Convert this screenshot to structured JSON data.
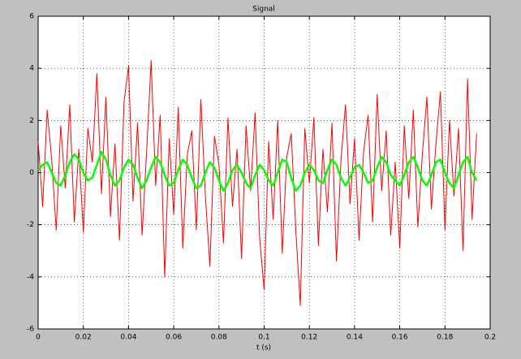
{
  "chart_data": {
    "type": "line",
    "title": "Signal",
    "x_label": "t (s)",
    "x": [
      0,
      0.002,
      0.004,
      0.006,
      0.008,
      0.01,
      0.012,
      0.014,
      0.016,
      0.018,
      0.02,
      0.022,
      0.024,
      0.026,
      0.028,
      0.03,
      0.032,
      0.034,
      0.036,
      0.038,
      0.04,
      0.042,
      0.044,
      0.046,
      0.048,
      0.05,
      0.052,
      0.054,
      0.056,
      0.058,
      0.06,
      0.062,
      0.064,
      0.066,
      0.068,
      0.07,
      0.072,
      0.074,
      0.076,
      0.078,
      0.08,
      0.082,
      0.084,
      0.086,
      0.088,
      0.09,
      0.092,
      0.094,
      0.096,
      0.098,
      0.1,
      0.102,
      0.104,
      0.106,
      0.108,
      0.11,
      0.112,
      0.114,
      0.116,
      0.118,
      0.12,
      0.122,
      0.124,
      0.126,
      0.128,
      0.13,
      0.132,
      0.134,
      0.136,
      0.138,
      0.14,
      0.142,
      0.144,
      0.146,
      0.148,
      0.15,
      0.152,
      0.154,
      0.156,
      0.158,
      0.16,
      0.162,
      0.164,
      0.166,
      0.168,
      0.17,
      0.172,
      0.174,
      0.176,
      0.178,
      0.18,
      0.182,
      0.184,
      0.186,
      0.188,
      0.19,
      0.192,
      0.194
    ],
    "series": [
      {
        "color": "#ff0000",
        "values": [
          1.2,
          -1.3,
          2.4,
          0.5,
          -2.2,
          1.8,
          -0.6,
          2.6,
          -1.9,
          0.9,
          -2.3,
          1.7,
          0.4,
          3.8,
          -0.8,
          2.9,
          -1.7,
          1.1,
          -2.6,
          2.7,
          4.1,
          -1.1,
          1.9,
          -2.4,
          0.8,
          4.3,
          -0.5,
          2.2,
          -4.0,
          1.3,
          -1.6,
          2.5,
          -2.9,
          0.7,
          1.6,
          -2.2,
          2.8,
          -0.9,
          -3.6,
          1.4,
          0.3,
          -2.7,
          2.1,
          -1.3,
          0.9,
          -3.3,
          1.8,
          -0.7,
          2.3,
          -2.5,
          -4.5,
          1.2,
          -1.8,
          2.0,
          -3.1,
          0.6,
          1.5,
          -2.2,
          -5.1,
          1.7,
          -0.4,
          2.1,
          -2.8,
          0.9,
          -1.5,
          1.9,
          -3.4,
          0.5,
          2.6,
          -1.2,
          1.3,
          -2.6,
          0.8,
          2.2,
          -1.9,
          3.0,
          -0.7,
          1.6,
          -2.4,
          0.4,
          -2.9,
          1.8,
          -1.0,
          2.4,
          -2.1,
          0.7,
          2.9,
          -1.4,
          1.1,
          3.1,
          -2.2,
          2.0,
          -0.9,
          1.7,
          -3.0,
          3.6,
          -1.8,
          1.5
        ]
      },
      {
        "color": "#00ff00",
        "values": [
          0.1,
          0.3,
          0.4,
          0.0,
          -0.4,
          -0.5,
          -0.1,
          0.4,
          0.7,
          0.5,
          0.0,
          -0.3,
          -0.2,
          0.3,
          0.8,
          0.5,
          -0.1,
          -0.5,
          -0.3,
          0.2,
          0.5,
          0.3,
          -0.2,
          -0.6,
          -0.3,
          0.2,
          0.6,
          0.4,
          -0.1,
          -0.5,
          -0.4,
          0.1,
          0.5,
          0.3,
          -0.2,
          -0.6,
          -0.5,
          0.0,
          0.4,
          0.2,
          -0.3,
          -0.7,
          -0.4,
          0.1,
          0.3,
          0.0,
          -0.4,
          -0.6,
          -0.1,
          0.3,
          0.1,
          -0.3,
          -0.5,
          0.0,
          0.5,
          0.4,
          -0.2,
          -0.7,
          -0.5,
          0.0,
          0.3,
          0.1,
          -0.3,
          -0.4,
          0.1,
          0.5,
          0.3,
          -0.2,
          -0.5,
          -0.2,
          0.2,
          0.3,
          0.0,
          -0.4,
          -0.3,
          0.2,
          0.6,
          0.4,
          -0.1,
          -0.3,
          -0.5,
          -0.1,
          0.4,
          0.6,
          0.2,
          -0.3,
          -0.5,
          -0.1,
          0.4,
          0.5,
          0.0,
          -0.4,
          -0.6,
          -0.1,
          0.4,
          0.6,
          0.0,
          -0.3
        ]
      }
    ],
    "xlim": [
      0,
      0.2
    ],
    "xticks": [
      0,
      0.02,
      0.04,
      0.06,
      0.08,
      0.1,
      0.12,
      0.14,
      0.16,
      0.18,
      0.2
    ],
    "ylim": [
      -6,
      6
    ],
    "yticks": [
      -6,
      -4,
      -2,
      0,
      2,
      4,
      6
    ],
    "grid": true
  }
}
